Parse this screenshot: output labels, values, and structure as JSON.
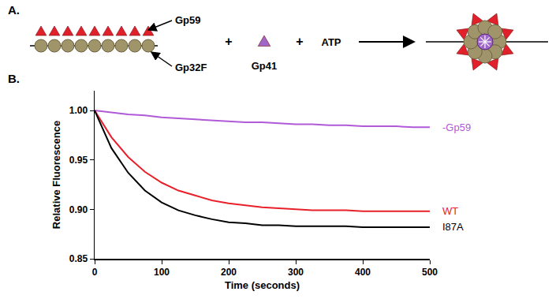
{
  "panel_a": {
    "label": "A.",
    "gp59": "Gp59",
    "gp32f": "Gp32F",
    "plus": "+",
    "gp41": "Gp41",
    "atp": "ATP"
  },
  "chart_data": {
    "type": "line",
    "title": "B.",
    "x_label": "Time (seconds)",
    "y_label": "Relative Fluorescence",
    "x": [
      0,
      25,
      50,
      75,
      100,
      125,
      150,
      175,
      200,
      225,
      250,
      275,
      300,
      325,
      350,
      375,
      400,
      425,
      450,
      475,
      500
    ],
    "series": [
      {
        "name": "-Gp59",
        "color": "#b05ad8",
        "values": [
          1.0,
          0.998,
          0.996,
          0.995,
          0.993,
          0.992,
          0.991,
          0.99,
          0.989,
          0.988,
          0.988,
          0.987,
          0.986,
          0.986,
          0.985,
          0.985,
          0.984,
          0.984,
          0.984,
          0.983,
          0.983
        ]
      },
      {
        "name": "WT",
        "color": "#e8202a",
        "values": [
          1.0,
          0.973,
          0.953,
          0.938,
          0.927,
          0.919,
          0.914,
          0.909,
          0.906,
          0.904,
          0.902,
          0.901,
          0.9,
          0.899,
          0.899,
          0.899,
          0.898,
          0.898,
          0.898,
          0.898,
          0.898
        ]
      },
      {
        "name": "I87A",
        "color": "#000000",
        "values": [
          1.0,
          0.962,
          0.937,
          0.919,
          0.907,
          0.899,
          0.894,
          0.89,
          0.887,
          0.886,
          0.884,
          0.884,
          0.883,
          0.883,
          0.883,
          0.883,
          0.882,
          0.882,
          0.882,
          0.882,
          0.882
        ]
      }
    ],
    "xlim": [
      0,
      500
    ],
    "ylim": [
      0.85,
      1.02
    ],
    "xticks": [
      0,
      100,
      200,
      300,
      400,
      500
    ],
    "yticks": [
      {
        "value": 0.85,
        "label": "0.85"
      },
      {
        "value": 0.9,
        "label": "0.90"
      },
      {
        "value": 0.95,
        "label": "0.95"
      },
      {
        "value": 1.0,
        "label": "1.00"
      }
    ],
    "grid": false
  }
}
